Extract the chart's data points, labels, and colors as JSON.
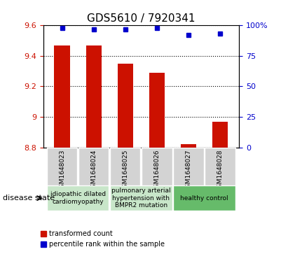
{
  "title": "GDS5610 / 7920341",
  "samples": [
    "GSM1648023",
    "GSM1648024",
    "GSM1648025",
    "GSM1648026",
    "GSM1648027",
    "GSM1648028"
  ],
  "transformed_counts": [
    9.47,
    9.47,
    9.35,
    9.29,
    8.82,
    8.97
  ],
  "percentile_ranks": [
    98,
    97,
    97,
    98,
    92,
    93
  ],
  "ylim_left": [
    8.8,
    9.6
  ],
  "ylim_right": [
    0,
    100
  ],
  "yticks_left": [
    8.8,
    9.0,
    9.2,
    9.4,
    9.6
  ],
  "yticks_right": [
    0,
    25,
    50,
    75,
    100
  ],
  "ytick_labels_left": [
    "8.8",
    "9",
    "9.2",
    "9.4",
    "9.6"
  ],
  "ytick_labels_right": [
    "0",
    "25",
    "50",
    "75",
    "100%"
  ],
  "bar_color": "#cc1100",
  "dot_color": "#0000cc",
  "bar_bottom": 8.8,
  "disease_groups": [
    {
      "label": "idiopathic dilated\ncardiomyopathy",
      "indices": [
        0,
        1
      ],
      "color": "#c8e6c9"
    },
    {
      "label": "pulmonary arterial\nhypertension with\nBMPR2 mutation",
      "indices": [
        2,
        3
      ],
      "color": "#c8e6c9"
    },
    {
      "label": "healthy control",
      "indices": [
        4,
        5
      ],
      "color": "#66bb6a"
    }
  ],
  "xlabel_disease": "disease state",
  "legend_bar_label": "transformed count",
  "legend_dot_label": "percentile rank within the sample",
  "grid_color": "#000000",
  "axis_label_color_left": "#cc1100",
  "axis_label_color_right": "#0000cc",
  "bg_plot": "#ffffff",
  "bg_xticklabel": "#d3d3d3",
  "fig_width": 4.11,
  "fig_height": 3.63
}
